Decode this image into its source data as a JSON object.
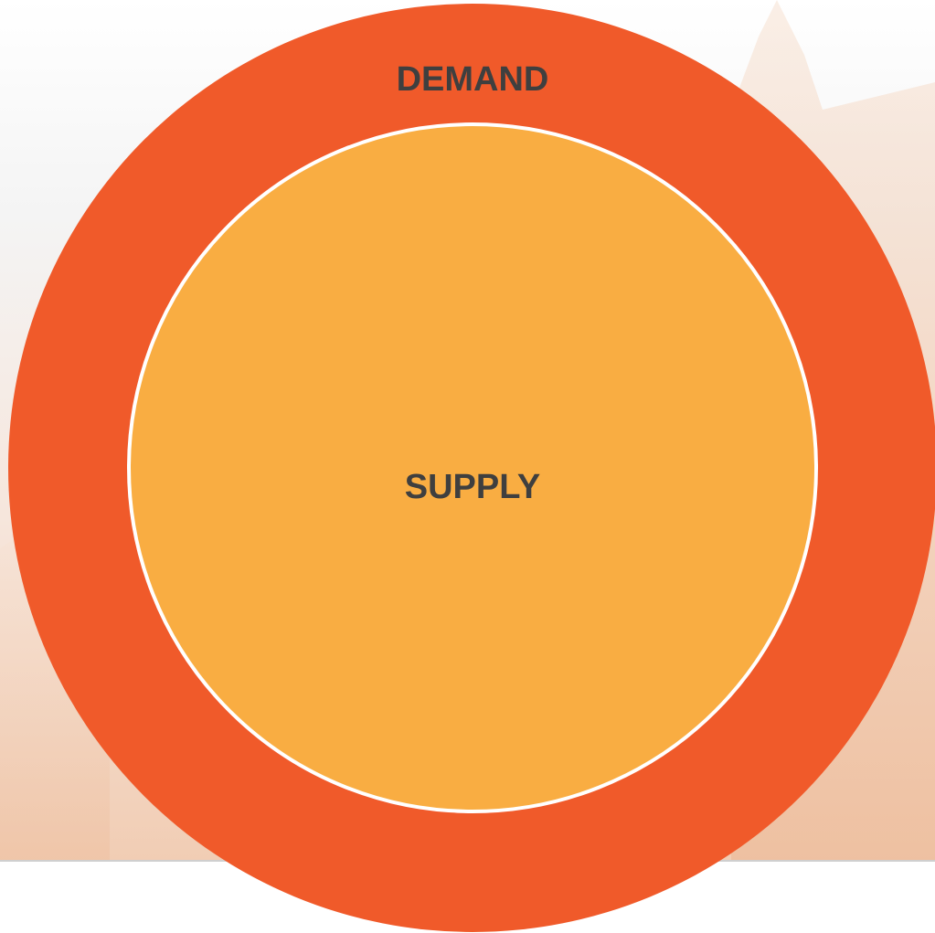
{
  "diagram": {
    "outer": {
      "label": "DEMAND"
    },
    "inner": {
      "label": "SUPPLY"
    }
  }
}
